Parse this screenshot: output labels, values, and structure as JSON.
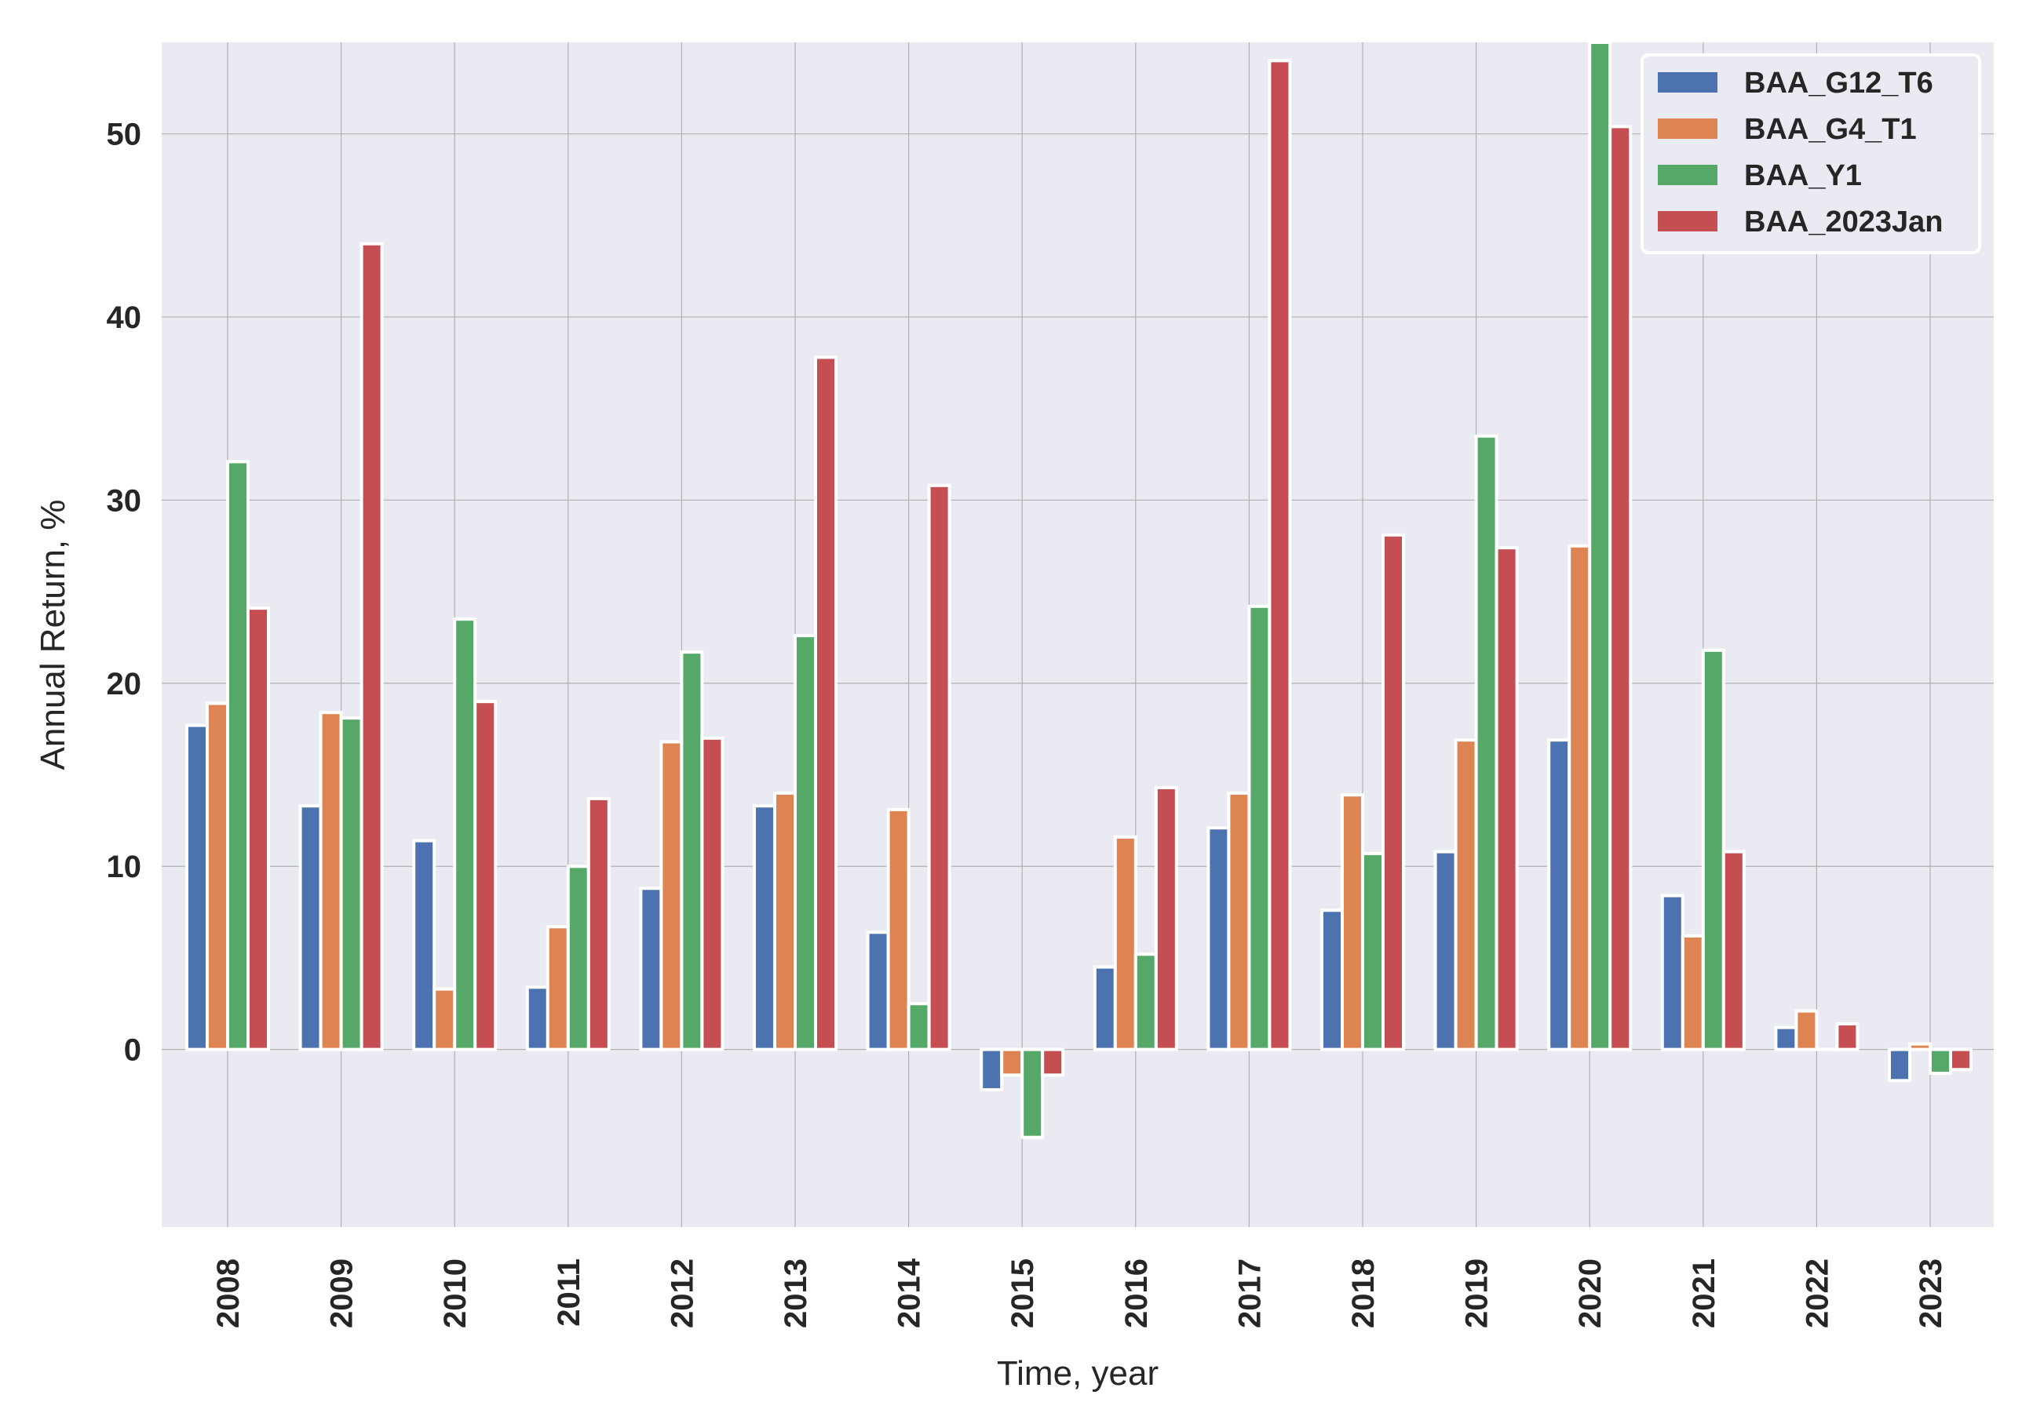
{
  "chart_data": {
    "type": "bar",
    "title": "",
    "xlabel": "Time, year",
    "ylabel": "Annual Return, %",
    "categories": [
      "2008",
      "2009",
      "2010",
      "2011",
      "2012",
      "2013",
      "2014",
      "2015",
      "2016",
      "2017",
      "2018",
      "2019",
      "2020",
      "2021",
      "2022",
      "2023"
    ],
    "ylim": [
      -9.7,
      55
    ],
    "yticks": [
      0,
      10,
      20,
      30,
      40,
      50
    ],
    "grid": true,
    "legend_position": "top-right",
    "series": [
      {
        "name": "BAA_G12_T6",
        "color": "#4c72b0",
        "values": [
          17.7,
          13.3,
          11.4,
          3.4,
          8.8,
          13.3,
          6.4,
          -2.2,
          4.5,
          12.1,
          7.6,
          10.8,
          16.9,
          8.4,
          1.2,
          -1.7
        ]
      },
      {
        "name": "BAA_G4_T1",
        "color": "#dd8452",
        "values": [
          18.9,
          18.4,
          3.3,
          6.7,
          16.8,
          14.0,
          13.1,
          -1.4,
          11.6,
          14.0,
          13.9,
          16.9,
          27.5,
          6.2,
          2.1,
          0.3
        ]
      },
      {
        "name": "BAA_Y1",
        "color": "#55a868",
        "values": [
          32.1,
          18.1,
          23.5,
          10.0,
          21.7,
          22.6,
          2.5,
          -4.8,
          5.2,
          24.2,
          10.7,
          33.5,
          55.0,
          21.8,
          0.0,
          -1.3
        ]
      },
      {
        "name": "BAA_2023Jan",
        "color": "#c44e52",
        "values": [
          24.1,
          44.0,
          19.0,
          13.7,
          17.0,
          37.8,
          30.8,
          -1.4,
          14.3,
          54.0,
          28.1,
          27.4,
          50.4,
          10.8,
          1.4,
          -1.1
        ]
      }
    ]
  }
}
